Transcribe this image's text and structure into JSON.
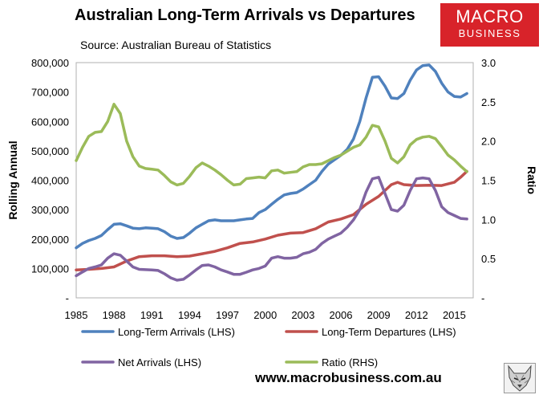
{
  "title": "Australian Long-Term Arrivals vs Departures",
  "subtitle": "Source: Australian Bureau of Statistics",
  "logo": {
    "line1": "MACRO",
    "line2": "BUSINESS",
    "color": "#d8232a"
  },
  "website": "www.macrobusiness.com.au",
  "wolf_icon": "wolf-head-icon",
  "chart_data": {
    "type": "line",
    "ylabel": "Rolling Annual",
    "y2label": "Ratio",
    "ylim": [
      0,
      800000
    ],
    "y2lim": [
      0,
      3.0
    ],
    "xlim": [
      1985,
      2016.5
    ],
    "xticks": [
      "1985",
      "1988",
      "1991",
      "1994",
      "1997",
      "2000",
      "2003",
      "2006",
      "2009",
      "2012",
      "2015"
    ],
    "yticks": [
      "-",
      "100,000",
      "200,000",
      "300,000",
      "400,000",
      "500,000",
      "600,000",
      "700,000",
      "800,000"
    ],
    "y2ticks": [
      "-",
      "0.5",
      "1.0",
      "1.5",
      "2.0",
      "2.5",
      "3.0"
    ],
    "grid": false,
    "legend_position": "bottom",
    "series": [
      {
        "name": "Long-Term Arrivals (LHS)",
        "axis": "left",
        "color": "#4f81bd",
        "points": [
          [
            1985.0,
            170000
          ],
          [
            1985.5,
            185000
          ],
          [
            1986.0,
            195000
          ],
          [
            1986.5,
            202000
          ],
          [
            1987.0,
            212000
          ],
          [
            1987.5,
            232000
          ],
          [
            1988.0,
            250000
          ],
          [
            1988.5,
            252000
          ],
          [
            1989.0,
            245000
          ],
          [
            1989.5,
            237000
          ],
          [
            1990.0,
            235000
          ],
          [
            1990.5,
            238000
          ],
          [
            1991.0,
            237000
          ],
          [
            1991.5,
            235000
          ],
          [
            1992.0,
            225000
          ],
          [
            1992.5,
            210000
          ],
          [
            1993.0,
            202000
          ],
          [
            1993.5,
            205000
          ],
          [
            1994.0,
            220000
          ],
          [
            1994.5,
            238000
          ],
          [
            1995.0,
            250000
          ],
          [
            1995.5,
            262000
          ],
          [
            1996.0,
            265000
          ],
          [
            1996.5,
            262000
          ],
          [
            1997.0,
            262000
          ],
          [
            1997.5,
            262000
          ],
          [
            1998.0,
            265000
          ],
          [
            1998.5,
            268000
          ],
          [
            1999.0,
            270000
          ],
          [
            1999.5,
            290000
          ],
          [
            2000.0,
            300000
          ],
          [
            2000.5,
            318000
          ],
          [
            2001.0,
            335000
          ],
          [
            2001.5,
            350000
          ],
          [
            2002.0,
            355000
          ],
          [
            2002.5,
            358000
          ],
          [
            2003.0,
            370000
          ],
          [
            2003.5,
            385000
          ],
          [
            2004.0,
            400000
          ],
          [
            2004.5,
            430000
          ],
          [
            2005.0,
            455000
          ],
          [
            2005.5,
            470000
          ],
          [
            2006.0,
            485000
          ],
          [
            2006.5,
            505000
          ],
          [
            2007.0,
            540000
          ],
          [
            2007.5,
            600000
          ],
          [
            2008.0,
            680000
          ],
          [
            2008.5,
            750000
          ],
          [
            2009.0,
            752000
          ],
          [
            2009.5,
            720000
          ],
          [
            2010.0,
            680000
          ],
          [
            2010.5,
            678000
          ],
          [
            2011.0,
            695000
          ],
          [
            2011.5,
            740000
          ],
          [
            2012.0,
            775000
          ],
          [
            2012.5,
            790000
          ],
          [
            2013.0,
            792000
          ],
          [
            2013.5,
            770000
          ],
          [
            2014.0,
            730000
          ],
          [
            2014.5,
            700000
          ],
          [
            2015.0,
            685000
          ],
          [
            2015.5,
            683000
          ],
          [
            2016.0,
            695000
          ]
        ]
      },
      {
        "name": "Long-Term Departures (LHS)",
        "axis": "left",
        "color": "#c0504d",
        "points": [
          [
            1985.0,
            95000
          ],
          [
            1986.0,
            97000
          ],
          [
            1987.0,
            100000
          ],
          [
            1988.0,
            105000
          ],
          [
            1989.0,
            125000
          ],
          [
            1990.0,
            140000
          ],
          [
            1991.0,
            143000
          ],
          [
            1992.0,
            143000
          ],
          [
            1993.0,
            140000
          ],
          [
            1994.0,
            142000
          ],
          [
            1995.0,
            150000
          ],
          [
            1996.0,
            158000
          ],
          [
            1997.0,
            170000
          ],
          [
            1998.0,
            185000
          ],
          [
            1999.0,
            190000
          ],
          [
            2000.0,
            200000
          ],
          [
            2001.0,
            213000
          ],
          [
            2002.0,
            220000
          ],
          [
            2003.0,
            222000
          ],
          [
            2004.0,
            235000
          ],
          [
            2005.0,
            258000
          ],
          [
            2006.0,
            268000
          ],
          [
            2007.0,
            283000
          ],
          [
            2008.0,
            318000
          ],
          [
            2009.0,
            345000
          ],
          [
            2010.0,
            385000
          ],
          [
            2010.5,
            393000
          ],
          [
            2011.0,
            385000
          ],
          [
            2012.0,
            382000
          ],
          [
            2013.0,
            383000
          ],
          [
            2014.0,
            382000
          ],
          [
            2015.0,
            393000
          ],
          [
            2015.5,
            410000
          ],
          [
            2016.0,
            430000
          ]
        ]
      },
      {
        "name": "Net Arrivals (LHS)",
        "axis": "left",
        "color": "#8064a2",
        "points": [
          [
            1985.0,
            75000
          ],
          [
            1985.5,
            88000
          ],
          [
            1986.0,
            100000
          ],
          [
            1986.5,
            105000
          ],
          [
            1987.0,
            112000
          ],
          [
            1987.5,
            135000
          ],
          [
            1988.0,
            150000
          ],
          [
            1988.5,
            145000
          ],
          [
            1989.0,
            125000
          ],
          [
            1989.5,
            105000
          ],
          [
            1990.0,
            97000
          ],
          [
            1991.0,
            95000
          ],
          [
            1991.5,
            93000
          ],
          [
            1992.0,
            82000
          ],
          [
            1992.5,
            68000
          ],
          [
            1993.0,
            60000
          ],
          [
            1993.5,
            63000
          ],
          [
            1994.0,
            78000
          ],
          [
            1994.5,
            95000
          ],
          [
            1995.0,
            110000
          ],
          [
            1995.5,
            112000
          ],
          [
            1996.0,
            105000
          ],
          [
            1996.5,
            95000
          ],
          [
            1997.0,
            88000
          ],
          [
            1997.5,
            80000
          ],
          [
            1998.0,
            80000
          ],
          [
            1998.5,
            87000
          ],
          [
            1999.0,
            95000
          ],
          [
            1999.5,
            100000
          ],
          [
            2000.0,
            108000
          ],
          [
            2000.5,
            135000
          ],
          [
            2001.0,
            140000
          ],
          [
            2001.5,
            135000
          ],
          [
            2002.0,
            135000
          ],
          [
            2002.5,
            138000
          ],
          [
            2003.0,
            150000
          ],
          [
            2003.5,
            155000
          ],
          [
            2004.0,
            165000
          ],
          [
            2004.5,
            185000
          ],
          [
            2005.0,
            200000
          ],
          [
            2005.5,
            210000
          ],
          [
            2006.0,
            220000
          ],
          [
            2006.5,
            240000
          ],
          [
            2007.0,
            265000
          ],
          [
            2007.5,
            300000
          ],
          [
            2008.0,
            360000
          ],
          [
            2008.5,
            405000
          ],
          [
            2009.0,
            410000
          ],
          [
            2009.5,
            355000
          ],
          [
            2010.0,
            300000
          ],
          [
            2010.5,
            295000
          ],
          [
            2011.0,
            315000
          ],
          [
            2011.5,
            365000
          ],
          [
            2012.0,
            405000
          ],
          [
            2012.5,
            408000
          ],
          [
            2013.0,
            405000
          ],
          [
            2013.5,
            365000
          ],
          [
            2014.0,
            310000
          ],
          [
            2014.5,
            290000
          ],
          [
            2015.0,
            280000
          ],
          [
            2015.5,
            270000
          ],
          [
            2016.0,
            268000
          ]
        ]
      },
      {
        "name": "Ratio (RHS)",
        "axis": "right",
        "color": "#9bbb59",
        "points": [
          [
            1985.0,
            1.75
          ],
          [
            1985.5,
            1.92
          ],
          [
            1986.0,
            2.06
          ],
          [
            1986.5,
            2.11
          ],
          [
            1987.0,
            2.12
          ],
          [
            1987.5,
            2.25
          ],
          [
            1988.0,
            2.47
          ],
          [
            1988.5,
            2.35
          ],
          [
            1989.0,
            2.0
          ],
          [
            1989.5,
            1.8
          ],
          [
            1990.0,
            1.68
          ],
          [
            1990.5,
            1.65
          ],
          [
            1991.0,
            1.64
          ],
          [
            1991.5,
            1.63
          ],
          [
            1992.0,
            1.56
          ],
          [
            1992.5,
            1.48
          ],
          [
            1993.0,
            1.44
          ],
          [
            1993.5,
            1.46
          ],
          [
            1994.0,
            1.55
          ],
          [
            1994.5,
            1.66
          ],
          [
            1995.0,
            1.72
          ],
          [
            1995.5,
            1.68
          ],
          [
            1996.0,
            1.63
          ],
          [
            1996.5,
            1.57
          ],
          [
            1997.0,
            1.5
          ],
          [
            1997.5,
            1.44
          ],
          [
            1998.0,
            1.45
          ],
          [
            1998.5,
            1.52
          ],
          [
            1999.0,
            1.53
          ],
          [
            1999.5,
            1.54
          ],
          [
            2000.0,
            1.53
          ],
          [
            2000.5,
            1.62
          ],
          [
            2001.0,
            1.63
          ],
          [
            2001.5,
            1.59
          ],
          [
            2002.0,
            1.6
          ],
          [
            2002.5,
            1.61
          ],
          [
            2003.0,
            1.67
          ],
          [
            2003.5,
            1.7
          ],
          [
            2004.0,
            1.7
          ],
          [
            2004.5,
            1.71
          ],
          [
            2005.0,
            1.75
          ],
          [
            2005.5,
            1.79
          ],
          [
            2006.0,
            1.82
          ],
          [
            2006.5,
            1.87
          ],
          [
            2007.0,
            1.92
          ],
          [
            2007.5,
            1.95
          ],
          [
            2008.0,
            2.05
          ],
          [
            2008.5,
            2.2
          ],
          [
            2009.0,
            2.18
          ],
          [
            2009.5,
            2.0
          ],
          [
            2010.0,
            1.78
          ],
          [
            2010.5,
            1.72
          ],
          [
            2011.0,
            1.8
          ],
          [
            2011.5,
            1.95
          ],
          [
            2012.0,
            2.02
          ],
          [
            2012.5,
            2.05
          ],
          [
            2013.0,
            2.06
          ],
          [
            2013.5,
            2.03
          ],
          [
            2014.0,
            1.93
          ],
          [
            2014.5,
            1.82
          ],
          [
            2015.0,
            1.76
          ],
          [
            2015.5,
            1.68
          ],
          [
            2016.0,
            1.61
          ]
        ]
      }
    ]
  }
}
